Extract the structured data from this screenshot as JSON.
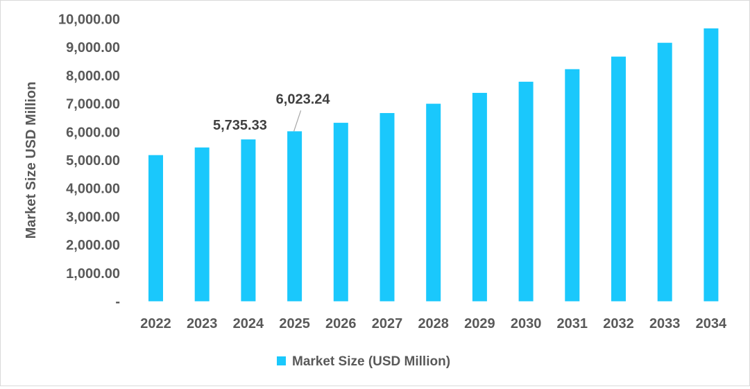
{
  "chart_data": {
    "type": "bar",
    "title": "",
    "xlabel": "",
    "ylabel": "Market Size USD Million",
    "categories": [
      "2022",
      "2023",
      "2024",
      "2025",
      "2026",
      "2027",
      "2028",
      "2029",
      "2030",
      "2031",
      "2032",
      "2033",
      "2034"
    ],
    "series": [
      {
        "name": "Market Size (USD Million)",
        "color": "#1ac8fc",
        "values": [
          5180,
          5450,
          5735.33,
          6023.24,
          6325,
          6670,
          7000,
          7385,
          7780,
          8225,
          8670,
          9160,
          9670
        ]
      }
    ],
    "data_labels": [
      {
        "category": "2024",
        "text": "5,735.33"
      },
      {
        "category": "2025",
        "text": "6,023.24"
      }
    ],
    "ylim": [
      0,
      10000
    ],
    "yticks": [
      "-",
      "1,000.00",
      "2,000.00",
      "3,000.00",
      "4,000.00",
      "5,000.00",
      "6,000.00",
      "7,000.00",
      "8,000.00",
      "9,000.00",
      "10,000.00"
    ],
    "grid": false,
    "legend_position": "bottom"
  }
}
